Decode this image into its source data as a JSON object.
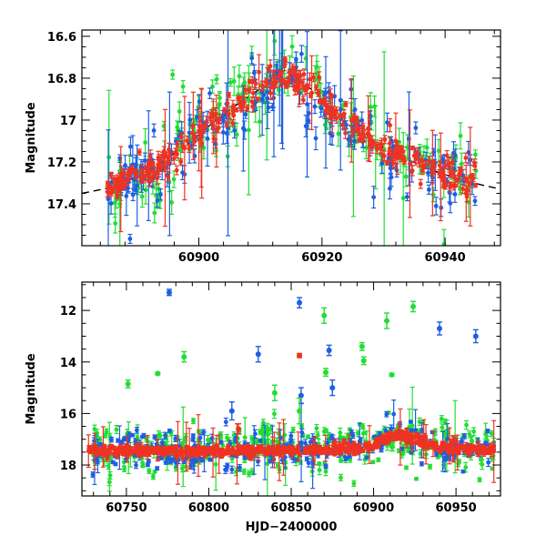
{
  "chart_data": [
    {
      "id": "top",
      "type": "scatter",
      "title": "",
      "xlabel": "",
      "ylabel": "Magnitude",
      "xlim": [
        60881,
        60949
      ],
      "ylim": [
        17.6,
        16.57
      ],
      "y_inverted": true,
      "xticks_labeled": [
        60900,
        60920,
        60940
      ],
      "xtick_labels": [
        "60900",
        "60920",
        "60940"
      ],
      "yticks_labeled": [
        16.6,
        16.8,
        17.0,
        17.2,
        17.4
      ],
      "ytick_labels": [
        "16.6",
        "16.8",
        "17",
        "17.2",
        "17.4"
      ],
      "model_curve": {
        "name": "model",
        "color": "#000000",
        "style": "dashed",
        "x": [
          60881,
          60886,
          60890,
          60894,
          60898,
          60902,
          60906,
          60910,
          60913,
          60916,
          60919,
          60922,
          60926,
          60930,
          60934,
          60938,
          60942,
          60946,
          60949
        ],
        "y": [
          17.35,
          17.32,
          17.27,
          17.2,
          17.12,
          17.02,
          16.93,
          16.85,
          16.8,
          16.8,
          16.87,
          16.97,
          17.06,
          17.13,
          17.19,
          17.24,
          17.28,
          17.31,
          17.33
        ]
      },
      "series": [
        {
          "name": "green",
          "color": "#22dd33",
          "n": 170,
          "offset": 0.0,
          "scatter": 0.09,
          "err": 0.045,
          "outliers": 0.35,
          "seed": 11
        },
        {
          "name": "blue",
          "color": "#1e5fe0",
          "n": 210,
          "offset": 0.0,
          "scatter": 0.07,
          "err": 0.035,
          "outliers": 0.25,
          "seed": 23
        },
        {
          "name": "red",
          "color": "#ee3322",
          "n": 330,
          "offset": 0.0,
          "scatter": 0.035,
          "err": 0.02,
          "outliers": 0.08,
          "seed": 37
        }
      ]
    },
    {
      "id": "bottom",
      "type": "scatter",
      "title": "",
      "xlabel": "HJD−2400000",
      "ylabel": "Magnitude",
      "xlim": [
        60723,
        60977
      ],
      "ylim": [
        19.2,
        10.9
      ],
      "y_inverted": true,
      "xticks_labeled": [
        60750,
        60800,
        60850,
        60900,
        60950
      ],
      "xtick_labels": [
        "60750",
        "60800",
        "60850",
        "60900",
        "60950"
      ],
      "yticks_labeled": [
        12,
        14,
        16,
        18
      ],
      "ytick_labels": [
        "12",
        "14",
        "16",
        "18"
      ],
      "baseline": {
        "x": [
          60728,
          60760,
          60800,
          60840,
          60880,
          60895,
          60905,
          60912,
          60918,
          60925,
          60935,
          60950,
          60970
        ],
        "y": [
          17.42,
          17.43,
          17.45,
          17.45,
          17.42,
          17.3,
          17.05,
          16.88,
          16.85,
          17.0,
          17.25,
          17.38,
          17.4
        ]
      },
      "series": [
        {
          "name": "green",
          "color": "#22dd33",
          "n": 360,
          "scatter": 0.45,
          "err": 0.12,
          "outliers": 0.8,
          "seed": 51
        },
        {
          "name": "blue",
          "color": "#1e5fe0",
          "n": 300,
          "scatter": 0.3,
          "err": 0.1,
          "outliers": 0.5,
          "seed": 63
        },
        {
          "name": "red",
          "color": "#ee3322",
          "n": 700,
          "scatter": 0.09,
          "err": 0.08,
          "outliers": 0.15,
          "seed": 79
        }
      ],
      "highlights": [
        {
          "series": "blue",
          "x": 60776,
          "y": 11.3,
          "err": 0.12
        },
        {
          "series": "blue",
          "x": 60855,
          "y": 11.7,
          "err": 0.2
        },
        {
          "series": "blue",
          "x": 60940,
          "y": 12.7,
          "err": 0.25
        },
        {
          "series": "blue",
          "x": 60962,
          "y": 13.0,
          "err": 0.25
        },
        {
          "series": "blue",
          "x": 60830,
          "y": 13.7,
          "err": 0.3
        },
        {
          "series": "blue",
          "x": 60873,
          "y": 13.55,
          "err": 0.2
        },
        {
          "series": "blue",
          "x": 60856,
          "y": 15.3,
          "err": 0.3
        },
        {
          "series": "blue",
          "x": 60875,
          "y": 15.0,
          "err": 0.3
        },
        {
          "series": "blue",
          "x": 60814,
          "y": 15.9,
          "err": 0.35
        },
        {
          "series": "green",
          "x": 60870,
          "y": 12.2,
          "err": 0.3
        },
        {
          "series": "green",
          "x": 60908,
          "y": 12.4,
          "err": 0.3
        },
        {
          "series": "green",
          "x": 60924,
          "y": 11.85,
          "err": 0.2
        },
        {
          "series": "green",
          "x": 60893,
          "y": 13.4,
          "err": 0.15
        },
        {
          "series": "green",
          "x": 60785,
          "y": 13.8,
          "err": 0.2
        },
        {
          "series": "green",
          "x": 60894,
          "y": 13.95,
          "err": 0.15
        },
        {
          "series": "green",
          "x": 60769,
          "y": 14.45,
          "err": 0.05
        },
        {
          "series": "green",
          "x": 60871,
          "y": 14.4,
          "err": 0.15
        },
        {
          "series": "green",
          "x": 60911,
          "y": 14.5,
          "err": 0.05
        },
        {
          "series": "green",
          "x": 60751,
          "y": 14.85,
          "err": 0.15
        },
        {
          "series": "green",
          "x": 60840,
          "y": 15.2,
          "err": 0.3
        },
        {
          "series": "green",
          "x": 60855,
          "y": 15.9,
          "err": 0.5
        },
        {
          "series": "red",
          "x": 60855,
          "y": 13.75,
          "err": 0.08
        },
        {
          "series": "red",
          "x": 60818,
          "y": 16.6,
          "err": 0.2
        }
      ]
    }
  ]
}
